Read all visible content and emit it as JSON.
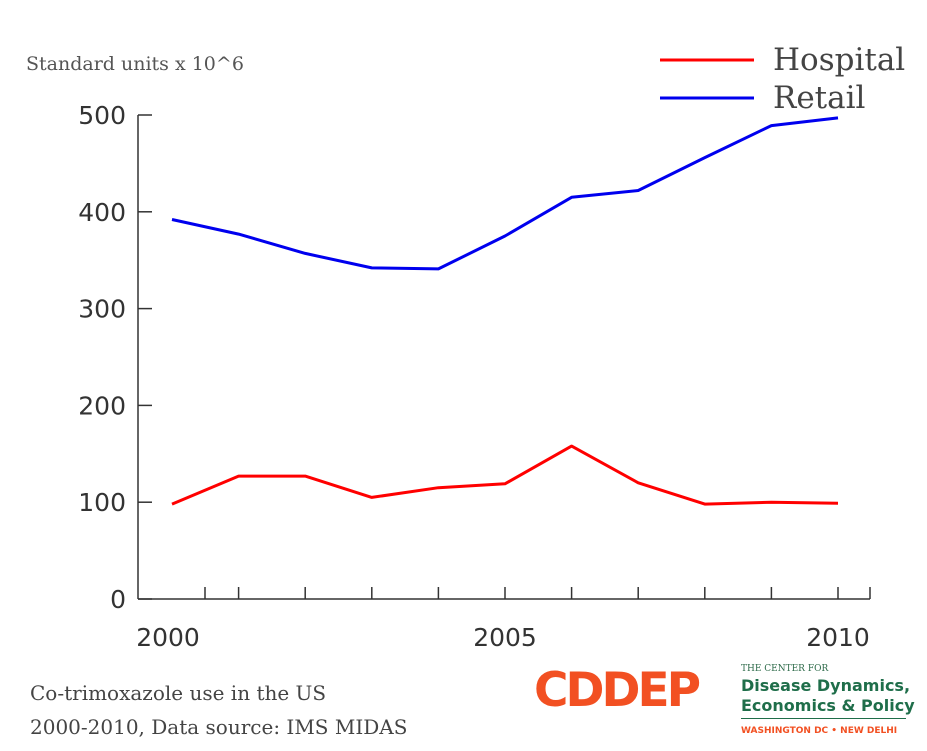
{
  "chart_data": {
    "type": "line",
    "ylabel": "Standard units x 10^6",
    "xlabel": "",
    "x": [
      2000,
      2001,
      2002,
      2003,
      2004,
      2005,
      2006,
      2007,
      2008,
      2009,
      2010
    ],
    "xlim": [
      2000,
      2010
    ],
    "ylim": [
      0,
      500
    ],
    "x_ticks": [
      2000,
      2001,
      2002,
      2003,
      2004,
      2005,
      2006,
      2007,
      2008,
      2009,
      2010
    ],
    "x_tick_labels": [
      {
        "value": 2000,
        "label": "2000"
      },
      {
        "value": 2005,
        "label": "2005"
      },
      {
        "value": 2010,
        "label": "2010"
      }
    ],
    "y_ticks": [
      0,
      100,
      200,
      300,
      400,
      500
    ],
    "y_tick_labels": [
      "0",
      "100",
      "200",
      "300",
      "400",
      "500"
    ],
    "grid": false,
    "legend_position": "top-right",
    "series": [
      {
        "name": "Hospital",
        "color": "#ff0000",
        "values": [
          98,
          127,
          127,
          105,
          115,
          119,
          158,
          120,
          98,
          100,
          99
        ]
      },
      {
        "name": "Retail",
        "color": "#0000ee",
        "values": [
          392,
          377,
          357,
          342,
          341,
          375,
          415,
          422,
          456,
          489,
          497
        ]
      }
    ]
  },
  "caption": {
    "line1": "Co-trimoxazole use in the US",
    "line2": "2000-2010, Data source: IMS MIDAS"
  },
  "logo": {
    "mark": "CDDEP",
    "small": "THE CENTER FOR",
    "line1": "Disease Dynamics,",
    "line2": "Economics & Policy",
    "city": "WASHINGTON DC • NEW DELHI",
    "color_accent": "#f25022",
    "color_green": "#1f6e4a"
  }
}
